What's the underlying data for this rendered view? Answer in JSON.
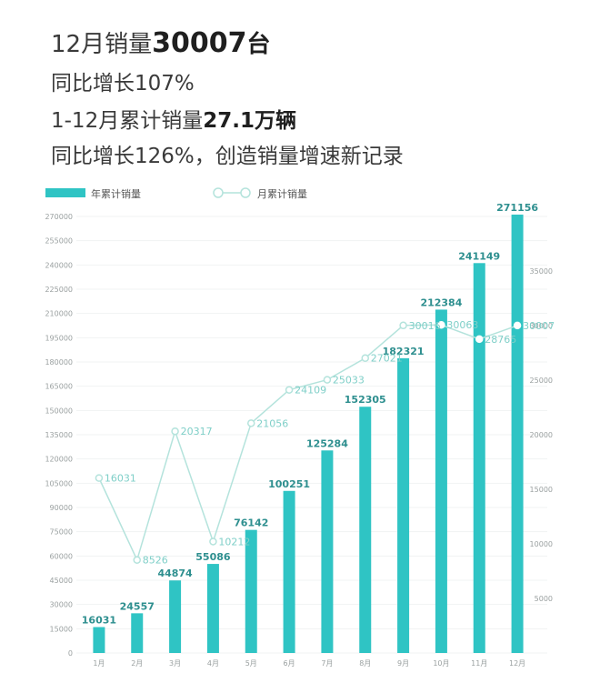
{
  "headlines": {
    "line1_prefix": "12月销量",
    "line1_value": "30007",
    "line1_suffix": "台",
    "line2": "同比增长107%",
    "line3_prefix": "1-12月累计销量",
    "line3_value": "27.1万辆",
    "line4": "同比增长126%，创造销量增速新记录"
  },
  "colors": {
    "bar": "#2fc4c4",
    "line": "#b4e3dc",
    "bar_label": "#2e8f8f",
    "line_label": "#7fcfc8"
  },
  "chart_data": {
    "type": "bar",
    "categories": [
      "1月",
      "2月",
      "3月",
      "4月",
      "5月",
      "6月",
      "7月",
      "8月",
      "9月",
      "10月",
      "11月",
      "12月"
    ],
    "series": [
      {
        "name": "年累计销量",
        "type": "bar",
        "axis": "left",
        "values": [
          16031,
          24557,
          44874,
          55086,
          76142,
          100251,
          125284,
          152305,
          182321,
          212384,
          241149,
          271156
        ]
      },
      {
        "name": "月累计销量",
        "type": "line",
        "axis": "right",
        "values": [
          16031,
          8526,
          20317,
          10212,
          21056,
          24109,
          25033,
          27021,
          30016,
          30063,
          28765,
          30007
        ]
      }
    ],
    "y_left": {
      "range": [
        0,
        270000
      ],
      "ticks": [
        "0",
        "15000",
        "30000",
        "45000",
        "60000",
        "75000",
        "90000",
        "105000",
        "120000",
        "135000",
        "150000",
        "165000",
        "180000",
        "195000",
        "210000",
        "225000",
        "240000",
        "255000",
        "270000"
      ]
    },
    "y_right": {
      "range": [
        0,
        40000
      ],
      "ticks": [
        "5000",
        "10000",
        "15000",
        "20000",
        "25000",
        "30000",
        "35000"
      ]
    },
    "legend": [
      "年累计销量",
      "月累计销量"
    ],
    "legend_position": "top-left",
    "grid": true
  }
}
